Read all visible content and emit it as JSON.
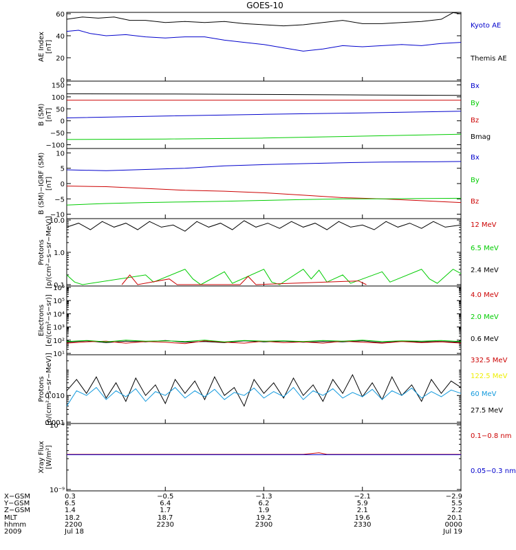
{
  "title": "GOES-10",
  "colors": {
    "blue": "#0000cc",
    "green": "#00cc00",
    "red": "#cc0000",
    "black": "#000000",
    "cyan": "#1199dd",
    "yellow": "#eeee00"
  },
  "chart_data": [
    {
      "type": "line",
      "ylabel": [
        "AE Index",
        "[nT]"
      ],
      "ylim": [
        0,
        60
      ],
      "yticks": [
        "0",
        "20",
        "40",
        "60"
      ],
      "legend": [
        {
          "label": "Kyoto AE",
          "color": "#0000cc"
        },
        {
          "label": "Themis AE",
          "color": "#000000"
        }
      ],
      "series": [
        {
          "name": "Themis AE",
          "color": "#000000",
          "x": [
            0,
            0.04,
            0.08,
            0.12,
            0.16,
            0.2,
            0.25,
            0.3,
            0.35,
            0.4,
            0.45,
            0.5,
            0.55,
            0.6,
            0.65,
            0.7,
            0.75,
            0.8,
            0.85,
            0.9,
            0.95,
            0.98,
            1.0
          ],
          "y": [
            55,
            57,
            56,
            57,
            54,
            54,
            52,
            53,
            52,
            53,
            51,
            50,
            49,
            50,
            52,
            54,
            51,
            51,
            52,
            53,
            55,
            61,
            60
          ]
        },
        {
          "name": "Kyoto AE",
          "color": "#0000cc",
          "x": [
            0,
            0.03,
            0.06,
            0.1,
            0.15,
            0.2,
            0.25,
            0.3,
            0.35,
            0.4,
            0.45,
            0.5,
            0.55,
            0.6,
            0.65,
            0.7,
            0.75,
            0.8,
            0.85,
            0.9,
            0.95,
            1.0
          ],
          "y": [
            44,
            45,
            42,
            40,
            41,
            39,
            38,
            39,
            39,
            36,
            34,
            32,
            29,
            26,
            28,
            31,
            30,
            31,
            32,
            31,
            33,
            34
          ]
        }
      ]
    },
    {
      "type": "line",
      "ylabel": [
        "B (SM)",
        "[nT]"
      ],
      "ylim": [
        -110,
        160
      ],
      "yticks": [
        "−100",
        "−50",
        "0",
        "50",
        "100",
        "150"
      ],
      "legend": [
        {
          "label": "Bx",
          "color": "#0000cc"
        },
        {
          "label": "By",
          "color": "#00cc00"
        },
        {
          "label": "Bz",
          "color": "#cc0000"
        },
        {
          "label": "Bmag",
          "color": "#000000"
        }
      ],
      "series": [
        {
          "name": "Bmag",
          "color": "#000000",
          "x": [
            0,
            0.25,
            0.5,
            0.75,
            1.0
          ],
          "y": [
            113,
            112,
            110,
            108,
            106
          ]
        },
        {
          "name": "Bz",
          "color": "#cc0000",
          "x": [
            0,
            0.5,
            1.0
          ],
          "y": [
            86,
            86,
            86
          ]
        },
        {
          "name": "Bx",
          "color": "#0000cc",
          "x": [
            0,
            0.25,
            0.5,
            0.75,
            1.0
          ],
          "y": [
            12,
            20,
            27,
            33,
            40
          ]
        },
        {
          "name": "By",
          "color": "#00cc00",
          "x": [
            0,
            0.25,
            0.5,
            0.75,
            1.0
          ],
          "y": [
            -78,
            -76,
            -72,
            -64,
            -56
          ]
        }
      ]
    },
    {
      "type": "line",
      "ylabel": [
        "B (SM)−IGRF (SM)",
        "[nT]"
      ],
      "ylim": [
        -11,
        11
      ],
      "yticks": [
        "−10",
        "−5",
        "0",
        "5",
        "10"
      ],
      "legend": [
        {
          "label": "Bx",
          "color": "#0000cc"
        },
        {
          "label": "By",
          "color": "#00cc00"
        },
        {
          "label": "Bz",
          "color": "#cc0000"
        }
      ],
      "series": [
        {
          "name": "Bx",
          "color": "#0000cc",
          "x": [
            0,
            0.1,
            0.2,
            0.3,
            0.4,
            0.5,
            0.6,
            0.7,
            0.8,
            0.9,
            1.0
          ],
          "y": [
            4.5,
            4.2,
            4.6,
            5.0,
            5.8,
            6.2,
            6.5,
            6.8,
            7.0,
            7.1,
            7.2
          ]
        },
        {
          "name": "Bz",
          "color": "#cc0000",
          "x": [
            0,
            0.1,
            0.2,
            0.3,
            0.4,
            0.5,
            0.6,
            0.7,
            0.8,
            0.9,
            1.0
          ],
          "y": [
            -0.8,
            -1.0,
            -1.6,
            -2.2,
            -2.5,
            -3.0,
            -3.8,
            -4.6,
            -5.0,
            -5.6,
            -6.2
          ]
        },
        {
          "name": "By",
          "color": "#00cc00",
          "x": [
            0,
            0.1,
            0.2,
            0.3,
            0.4,
            0.5,
            0.6,
            0.7,
            0.8,
            0.9,
            1.0
          ],
          "y": [
            -7.0,
            -6.5,
            -6.2,
            -6.0,
            -5.8,
            -5.5,
            -5.2,
            -5.0,
            -5.0,
            -4.9,
            -4.8
          ]
        }
      ]
    },
    {
      "type": "line",
      "scale": "log",
      "ylabel": [
        "Protons",
        "[p/(cm²−s−sr−MeV)]"
      ],
      "ylim": [
        0.1,
        10
      ],
      "yticks": [
        "0.1",
        "1.0",
        "10.0"
      ],
      "legend": [
        {
          "label": "12 MeV",
          "color": "#cc0000"
        },
        {
          "label": "6.5 MeV",
          "color": "#00cc00"
        },
        {
          "label": "2.4 MeV",
          "color": "#000000"
        }
      ],
      "series": [
        {
          "name": "2.4 MeV",
          "color": "#000000",
          "x": [
            0,
            0.03,
            0.06,
            0.09,
            0.12,
            0.15,
            0.18,
            0.21,
            0.24,
            0.27,
            0.3,
            0.33,
            0.36,
            0.39,
            0.42,
            0.45,
            0.48,
            0.51,
            0.54,
            0.57,
            0.6,
            0.63,
            0.66,
            0.69,
            0.72,
            0.75,
            0.78,
            0.81,
            0.84,
            0.87,
            0.9,
            0.93,
            0.96,
            1.0
          ],
          "y": [
            6,
            8,
            5,
            9,
            6,
            8,
            5,
            9,
            6,
            7,
            4.5,
            9,
            6,
            8,
            5,
            9.5,
            6,
            8,
            5.5,
            9,
            6,
            8,
            5,
            9,
            6,
            7,
            5,
            9,
            6,
            8,
            5.5,
            9,
            6,
            7
          ]
        },
        {
          "name": "6.5 MeV",
          "color": "#00cc00",
          "x": [
            0.0,
            0.02,
            0.04,
            0.2,
            0.22,
            0.3,
            0.32,
            0.34,
            0.4,
            0.42,
            0.5,
            0.52,
            0.54,
            0.6,
            0.62,
            0.64,
            0.66,
            0.7,
            0.72,
            0.8,
            0.82,
            0.9,
            0.92,
            0.94,
            0.98,
            1.0
          ],
          "y": [
            0.2,
            0.12,
            0.1,
            0.2,
            0.12,
            0.3,
            0.15,
            0.1,
            0.25,
            0.11,
            0.3,
            0.12,
            0.1,
            0.3,
            0.15,
            0.28,
            0.12,
            0.2,
            0.11,
            0.25,
            0.12,
            0.3,
            0.15,
            0.11,
            0.3,
            0.22
          ]
        },
        {
          "name": "12 MeV",
          "color": "#cc0000",
          "x": [
            0.14,
            0.16,
            0.18,
            0.26,
            0.28,
            0.44,
            0.46,
            0.48,
            0.74,
            0.76
          ],
          "y": [
            0.1,
            0.2,
            0.1,
            0.15,
            0.1,
            0.1,
            0.18,
            0.1,
            0.13,
            0.1
          ]
        }
      ]
    },
    {
      "type": "line",
      "scale": "log",
      "ylabel": [
        "Electrons",
        "[e/(cm²−s−sr)]"
      ],
      "ylim": [
        10,
        1000000
      ],
      "yticks": [
        "10¹",
        "10²",
        "10³",
        "10⁴",
        "10⁵",
        "10⁶"
      ],
      "legend": [
        {
          "label": "4.0 MeV",
          "color": "#cc0000"
        },
        {
          "label": "2.0 MeV",
          "color": "#00cc00"
        },
        {
          "label": "0.6 MeV",
          "color": "#000000"
        }
      ],
      "series": [
        {
          "name": "0.6 MeV",
          "color": "#000000",
          "x": [
            0,
            0.05,
            0.1,
            0.15,
            0.2,
            0.25,
            0.3,
            0.35,
            0.4,
            0.45,
            0.5,
            0.55,
            0.6,
            0.65,
            0.7,
            0.75,
            0.8,
            0.85,
            0.9,
            0.95,
            1.0
          ],
          "y": [
            70,
            90,
            65,
            85,
            75,
            95,
            70,
            80,
            65,
            90,
            75,
            85,
            70,
            80,
            75,
            90,
            65,
            85,
            75,
            80,
            70
          ]
        },
        {
          "name": "4.0 MeV",
          "color": "#cc0000",
          "x": [
            0,
            0.05,
            0.1,
            0.15,
            0.2,
            0.25,
            0.3,
            0.35,
            0.4,
            0.45,
            0.5,
            0.55,
            0.6,
            0.65,
            0.7,
            0.75,
            0.8,
            0.85,
            0.9,
            0.95,
            1.0
          ],
          "y": [
            60,
            75,
            85,
            60,
            80,
            70,
            55,
            90,
            70,
            60,
            85,
            65,
            75,
            60,
            85,
            70,
            60,
            80,
            65,
            75,
            60
          ]
        },
        {
          "name": "2.0 MeV",
          "color": "#00cc00",
          "x": [
            0,
            0.05,
            0.1,
            0.15,
            0.2,
            0.25,
            0.3,
            0.35,
            0.4,
            0.45,
            0.5,
            0.55,
            0.6,
            0.65,
            0.7,
            0.75,
            0.8,
            0.85,
            0.9,
            0.95,
            1.0
          ],
          "y": [
            80,
            95,
            75,
            100,
            85,
            90,
            80,
            100,
            75,
            95,
            85,
            90,
            80,
            95,
            85,
            100,
            80,
            90,
            85,
            95,
            80
          ]
        }
      ]
    },
    {
      "type": "line",
      "scale": "log",
      "ylabel": [
        "Protons",
        "[p/(cm²−s−sr−MeV)]"
      ],
      "ylim": [
        0.001,
        0.3
      ],
      "yticks": [
        "0.001",
        "0.010"
      ],
      "legend": [
        {
          "label": "332.5 MeV",
          "color": "#cc0000"
        },
        {
          "label": "122.5 MeV",
          "color": "#eeee00"
        },
        {
          "label": "60 MeV",
          "color": "#1199dd"
        },
        {
          "label": "27.5 MeV",
          "color": "#000000"
        }
      ],
      "series": [
        {
          "name": "27.5 MeV",
          "color": "#000000",
          "x": [
            0,
            0.025,
            0.05,
            0.075,
            0.1,
            0.125,
            0.15,
            0.175,
            0.2,
            0.225,
            0.25,
            0.275,
            0.3,
            0.325,
            0.35,
            0.375,
            0.4,
            0.425,
            0.45,
            0.475,
            0.5,
            0.525,
            0.55,
            0.575,
            0.6,
            0.625,
            0.65,
            0.675,
            0.7,
            0.725,
            0.75,
            0.775,
            0.8,
            0.825,
            0.85,
            0.875,
            0.9,
            0.925,
            0.95,
            0.975,
            1.0
          ],
          "y": [
            0.015,
            0.04,
            0.012,
            0.05,
            0.008,
            0.03,
            0.006,
            0.045,
            0.01,
            0.025,
            0.005,
            0.04,
            0.012,
            0.035,
            0.007,
            0.05,
            0.01,
            0.02,
            0.004,
            0.04,
            0.012,
            0.03,
            0.008,
            0.045,
            0.01,
            0.025,
            0.006,
            0.04,
            0.012,
            0.06,
            0.009,
            0.03,
            0.007,
            0.05,
            0.01,
            0.025,
            0.006,
            0.04,
            0.012,
            0.035,
            0.02
          ]
        },
        {
          "name": "60 MeV",
          "color": "#1199dd",
          "x": [
            0,
            0.025,
            0.05,
            0.075,
            0.1,
            0.125,
            0.15,
            0.175,
            0.2,
            0.225,
            0.25,
            0.275,
            0.3,
            0.325,
            0.35,
            0.375,
            0.4,
            0.425,
            0.45,
            0.475,
            0.5,
            0.525,
            0.55,
            0.575,
            0.6,
            0.625,
            0.65,
            0.675,
            0.7,
            0.725,
            0.75,
            0.775,
            0.8,
            0.825,
            0.85,
            0.875,
            0.9,
            0.925,
            0.95,
            0.975,
            1.0
          ],
          "y": [
            0.004,
            0.015,
            0.01,
            0.02,
            0.007,
            0.015,
            0.009,
            0.018,
            0.006,
            0.014,
            0.01,
            0.02,
            0.008,
            0.015,
            0.009,
            0.017,
            0.007,
            0.013,
            0.01,
            0.019,
            0.008,
            0.014,
            0.009,
            0.02,
            0.007,
            0.015,
            0.01,
            0.018,
            0.008,
            0.013,
            0.009,
            0.017,
            0.007,
            0.015,
            0.01,
            0.019,
            0.008,
            0.014,
            0.009,
            0.016,
            0.012
          ]
        }
      ]
    },
    {
      "type": "line",
      "scale": "log",
      "ylabel": [
        "Xray Flux",
        "[W/m²]"
      ],
      "ylim": [
        1e-09,
        1e-08
      ],
      "yticks": [
        "10⁻⁹",
        "10⁻⁸"
      ],
      "legend": [
        {
          "label": "0.1−0.8 nm",
          "color": "#cc0000"
        },
        {
          "label": "0.05−0.3 nm",
          "color": "#0000cc"
        }
      ],
      "series": [
        {
          "name": "0.1−0.8 nm",
          "color": "#cc0000",
          "x": [
            0,
            0.2,
            0.4,
            0.6,
            0.64,
            0.66,
            0.8,
            1.0
          ],
          "y": [
            3.5e-09,
            3.5e-09,
            3.5e-09,
            3.5e-09,
            3.7e-09,
            3.5e-09,
            3.5e-09,
            3.5e-09
          ]
        },
        {
          "name": "0.05−0.3 nm",
          "color": "#0000cc",
          "x": [
            0,
            0.5,
            1.0
          ],
          "y": [
            3.45e-09,
            3.45e-09,
            3.45e-09
          ]
        }
      ]
    }
  ],
  "xaxis": {
    "row_labels": [
      "X−GSM",
      "Y−GSM",
      "Z−GSM",
      "MLT",
      "hhmm",
      "2009"
    ],
    "ticks": [
      {
        "values": [
          "0.3",
          "6.5",
          "1.4",
          "18.2",
          "2200",
          "Jul 18"
        ]
      },
      {
        "values": [
          "−0.5",
          "6.4",
          "1.7",
          "18.7",
          "2230",
          ""
        ]
      },
      {
        "values": [
          "−1.3",
          "6.2",
          "1.9",
          "19.2",
          "2300",
          ""
        ]
      },
      {
        "values": [
          "−2.1",
          "5.9",
          "2.1",
          "19.6",
          "2330",
          ""
        ]
      },
      {
        "values": [
          "−2.9",
          "5.5",
          "2.2",
          "20.1",
          "0000",
          "Jul 19"
        ]
      }
    ]
  }
}
